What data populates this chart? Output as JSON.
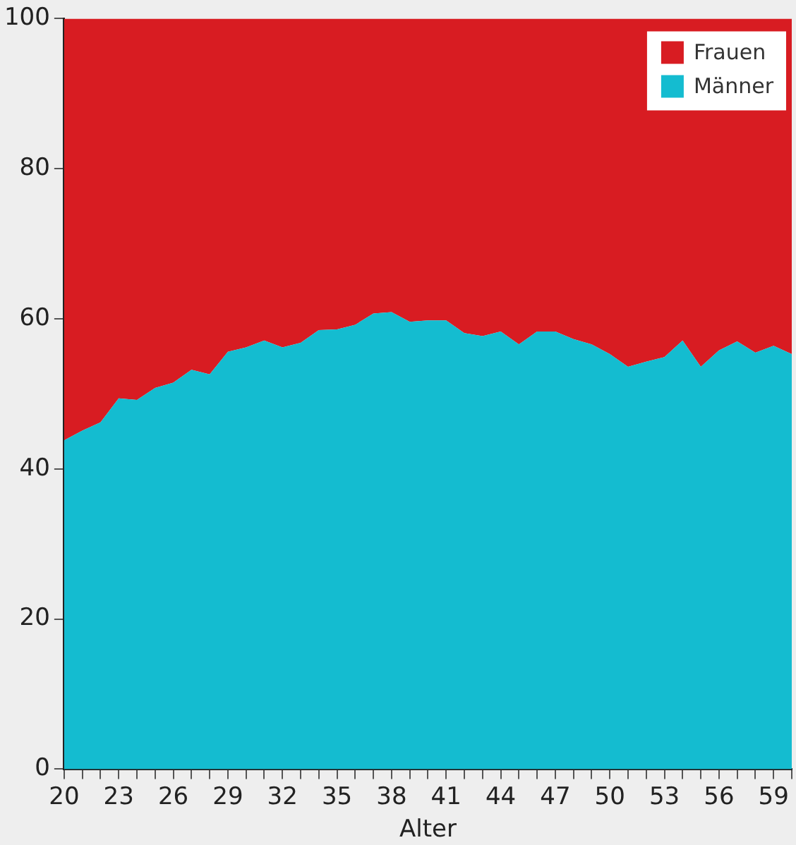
{
  "chart_data": {
    "type": "area",
    "xlabel": "Alter",
    "stacked": true,
    "legend": "top right",
    "grid": false,
    "x": [
      20,
      21,
      22,
      23,
      24,
      25,
      26,
      27,
      28,
      29,
      30,
      31,
      32,
      33,
      34,
      35,
      36,
      37,
      38,
      39,
      40,
      41,
      42,
      43,
      44,
      45,
      46,
      47,
      48,
      49,
      50,
      51,
      52,
      53,
      54,
      55,
      56,
      57,
      58,
      59,
      60
    ],
    "xlim": [
      20,
      60
    ],
    "xticks": [
      20,
      {
        "value": 21,
        "label": null
      },
      {
        "value": 22,
        "label": null
      },
      23,
      {
        "value": 24,
        "label": null
      },
      {
        "value": 25,
        "label": null
      },
      26,
      {
        "value": 27,
        "label": null
      },
      {
        "value": 28,
        "label": null
      },
      29,
      {
        "value": 30,
        "label": null
      },
      {
        "value": 31,
        "label": null
      },
      32,
      {
        "value": 33,
        "label": null
      },
      {
        "value": 34,
        "label": null
      },
      35,
      {
        "value": 36,
        "label": null
      },
      {
        "value": 37,
        "label": null
      },
      38,
      {
        "value": 39,
        "label": null
      },
      {
        "value": 40,
        "label": null
      },
      41,
      {
        "value": 42,
        "label": null
      },
      {
        "value": 43,
        "label": null
      },
      44,
      {
        "value": 45,
        "label": null
      },
      {
        "value": 46,
        "label": null
      },
      47,
      {
        "value": 48,
        "label": null
      },
      {
        "value": 49,
        "label": null
      },
      50,
      {
        "value": 51,
        "label": null
      },
      {
        "value": 52,
        "label": null
      },
      53,
      {
        "value": 54,
        "label": null
      },
      {
        "value": 55,
        "label": null
      },
      56,
      {
        "value": 57,
        "label": null
      },
      {
        "value": 58,
        "label": null
      },
      59,
      {
        "value": 60,
        "label": null
      }
    ],
    "ylim": [
      0,
      100
    ],
    "yticks": [
      0,
      20,
      40,
      60,
      80,
      100
    ],
    "series": [
      {
        "name": "Männer",
        "color": "#14bcd0",
        "values": [
          43.8,
          45.1,
          46.2,
          49.4,
          49.2,
          50.8,
          51.5,
          53.2,
          52.6,
          55.6,
          56.2,
          57.1,
          56.2,
          56.8,
          58.5,
          58.6,
          59.2,
          60.7,
          60.9,
          59.6,
          59.8,
          59.8,
          58.1,
          57.7,
          58.3,
          56.6,
          58.3,
          58.3,
          57.3,
          56.6,
          55.3,
          53.6,
          54.3,
          54.9,
          57.1,
          53.6,
          55.8,
          57.0,
          55.5,
          56.4,
          55.3
        ]
      },
      {
        "name": "Frauen",
        "color": "#d81c22",
        "values": [
          56.2,
          54.9,
          53.8,
          50.6,
          50.8,
          49.2,
          48.5,
          46.8,
          47.4,
          44.4,
          43.8,
          42.9,
          43.8,
          43.2,
          41.5,
          41.4,
          40.8,
          39.3,
          39.1,
          40.4,
          40.2,
          40.2,
          41.9,
          42.3,
          41.7,
          43.4,
          41.7,
          41.7,
          42.7,
          43.4,
          44.7,
          46.4,
          45.7,
          45.1,
          42.9,
          46.4,
          44.2,
          43.0,
          44.5,
          43.6,
          44.7
        ]
      }
    ]
  }
}
